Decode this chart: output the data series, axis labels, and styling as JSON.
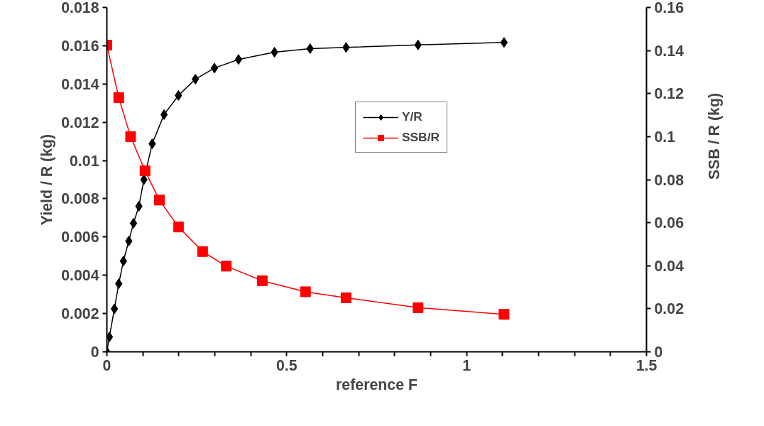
{
  "chart_data": {
    "type": "line",
    "xlabel": "reference F",
    "ylabel": "Yield / R (kg)",
    "y2label": "SSB / R (kg)",
    "xlim": [
      0,
      1.5
    ],
    "xticks": [
      0,
      {
        "value": 0.1,
        "label": null
      },
      {
        "value": 0.2,
        "label": null
      },
      {
        "value": 0.3,
        "label": null
      },
      {
        "value": 0.4,
        "label": null
      },
      0.5,
      {
        "value": 0.6,
        "label": null
      },
      {
        "value": 0.7,
        "label": null
      },
      {
        "value": 0.8,
        "label": null
      },
      {
        "value": 0.9,
        "label": null
      },
      1,
      {
        "value": 1.1,
        "label": null
      },
      {
        "value": 1.2,
        "label": null
      },
      {
        "value": 1.3,
        "label": null
      },
      {
        "value": 1.4,
        "label": null
      },
      1.5
    ],
    "ylim": [
      0,
      0.018
    ],
    "yticks": [
      0,
      0.002,
      0.004,
      0.006,
      0.008,
      0.01,
      0.012,
      0.014,
      0.016,
      0.018
    ],
    "y2lim": [
      0,
      0.16
    ],
    "y2ticks": [
      0,
      0.02,
      0.04,
      0.06,
      0.08,
      0.1,
      0.12,
      0.14,
      0.16
    ],
    "grid": false,
    "legend": "top",
    "line_style": "solid",
    "series": [
      {
        "name": "Y/R",
        "color": "#000000",
        "marker": "diamond",
        "x": [
          0,
          0.007,
          0.021,
          0.033,
          0.046,
          0.061,
          0.074,
          0.089,
          0.103,
          0.126,
          0.159,
          0.199,
          0.246,
          0.299,
          0.366,
          0.466,
          0.565,
          0.665,
          0.865,
          1.104
        ],
        "values": [
          0,
          0.00078,
          0.00225,
          0.00356,
          0.00474,
          0.00579,
          0.00672,
          0.00761,
          0.009,
          0.01087,
          0.0124,
          0.0134,
          0.01425,
          0.01483,
          0.01528,
          0.01566,
          0.01585,
          0.01591,
          0.01604,
          0.01617
        ]
      },
      {
        "name": "SSB/R",
        "color": "#ff0000",
        "marker": "square",
        "axis": "y2",
        "x": [
          0,
          0.033,
          0.066,
          0.106,
          0.146,
          0.199,
          0.266,
          0.332,
          0.432,
          0.552,
          0.665,
          0.865,
          1.104
        ],
        "values": [
          0.1425,
          0.1181,
          0.1,
          0.0841,
          0.0705,
          0.058,
          0.0466,
          0.0398,
          0.033,
          0.0279,
          0.0251,
          0.0205,
          0.0174
        ]
      }
    ]
  }
}
